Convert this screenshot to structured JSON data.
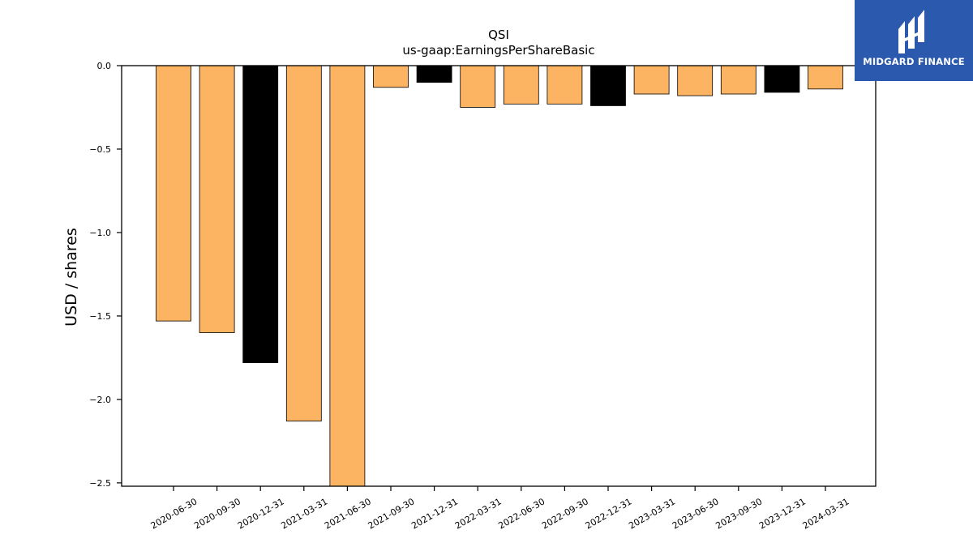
{
  "chart_data": {
    "type": "bar",
    "title": "QSI",
    "subtitle": "us-gaap:EarningsPerShareBasic",
    "xlabel": "",
    "ylabel": "USD / shares",
    "ylim": [
      -2.52,
      0.0
    ],
    "yticks": [
      0.0,
      -0.5,
      -1.0,
      -1.5,
      -2.0,
      -2.5
    ],
    "ytick_labels": [
      "0.0",
      "−0.5",
      "−1.0",
      "−1.5",
      "−2.0",
      "−2.5"
    ],
    "categories": [
      "2020-06-30",
      "2020-09-30",
      "2020-12-31",
      "2021-03-31",
      "2021-06-30",
      "2021-09-30",
      "2021-12-31",
      "2022-03-31",
      "2022-06-30",
      "2022-09-30",
      "2022-12-31",
      "2023-03-31",
      "2023-06-30",
      "2023-09-30",
      "2023-12-31",
      "2024-03-31"
    ],
    "values": [
      -1.53,
      -1.6,
      -1.78,
      -2.13,
      -2.6,
      -0.13,
      -0.1,
      -0.25,
      -0.23,
      -0.23,
      -0.24,
      -0.17,
      -0.18,
      -0.17,
      -0.16,
      -0.14
    ],
    "bar_colors": [
      "#fdb462",
      "#fdb462",
      "#000000",
      "#fdb462",
      "#fdb462",
      "#fdb462",
      "#000000",
      "#fdb462",
      "#fdb462",
      "#fdb462",
      "#000000",
      "#fdb462",
      "#fdb462",
      "#fdb462",
      "#000000",
      "#fdb462"
    ],
    "grid": false,
    "legend": "none"
  },
  "logo": {
    "text": "MIDGARD FINANCE",
    "background": "#2b59ae",
    "icon": "midgard-logo-icon"
  }
}
